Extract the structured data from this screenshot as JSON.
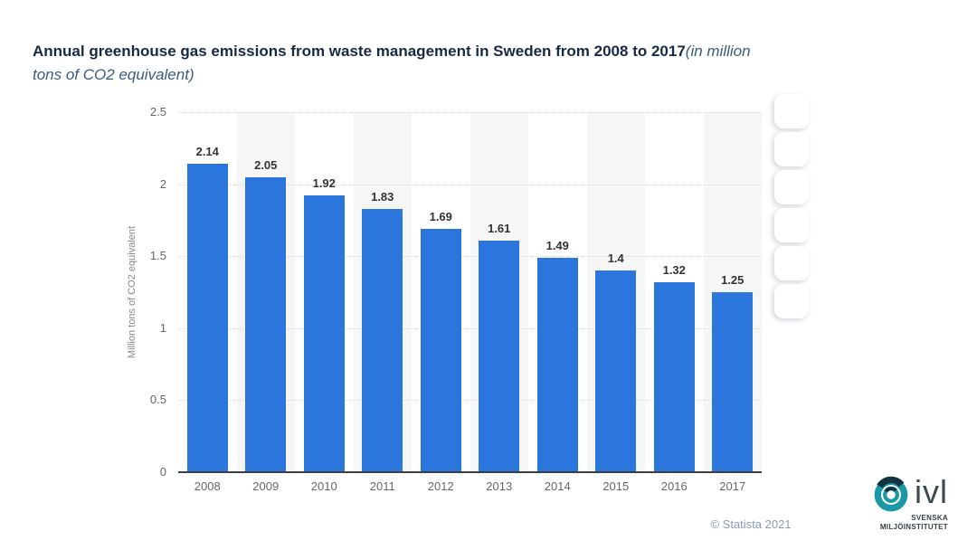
{
  "header": {
    "title_bold": "Annual greenhouse gas emissions from waste management in Sweden from 2008 to 2017",
    "title_italic_line1": "(in million",
    "title_italic_line2": "tons of CO2 equivalent)"
  },
  "chart_data": {
    "type": "bar",
    "title": "Annual greenhouse gas emissions from waste management in Sweden from 2008 to 2017 (in million tons of CO2 equivalent)",
    "categories": [
      "2008",
      "2009",
      "2010",
      "2011",
      "2012",
      "2013",
      "2014",
      "2015",
      "2016",
      "2017"
    ],
    "values": [
      2.14,
      2.05,
      1.92,
      1.83,
      1.69,
      1.61,
      1.49,
      1.4,
      1.32,
      1.25
    ],
    "value_labels": [
      "2.14",
      "2.05",
      "1.92",
      "1.83",
      "1.69",
      "1.61",
      "1.49",
      "1.4",
      "1.32",
      "1.25"
    ],
    "xlabel": "",
    "ylabel": "Million tons of CO2 equivalent",
    "ylim": [
      0,
      2.5
    ],
    "yticks": [
      0,
      0.5,
      1,
      1.5,
      2,
      2.5
    ],
    "ytick_labels": [
      "0",
      "0.5",
      "1",
      "1.5",
      "2",
      "2.5"
    ],
    "bar_color": "#2a76dd",
    "grid": "horizontal dotted",
    "column_stripes": "alternating white and light gray",
    "legend": "none"
  },
  "side_toolbar": {
    "visible_buttons": 6
  },
  "footer": {
    "copyright": "© Statista 2021"
  },
  "logo": {
    "name": "ivl",
    "line1": "SVENSKA",
    "line2": "MILJÖINSTITUTET"
  },
  "colors": {
    "bar": "#2a76dd",
    "title": "#172a45",
    "subtitle": "#3a5c80",
    "axis_text": "#666666",
    "stripe": "#f6f6f7",
    "copyright": "#8a9ab5",
    "logo_teal": "#1a98a6",
    "logo_dark": "#143340"
  }
}
